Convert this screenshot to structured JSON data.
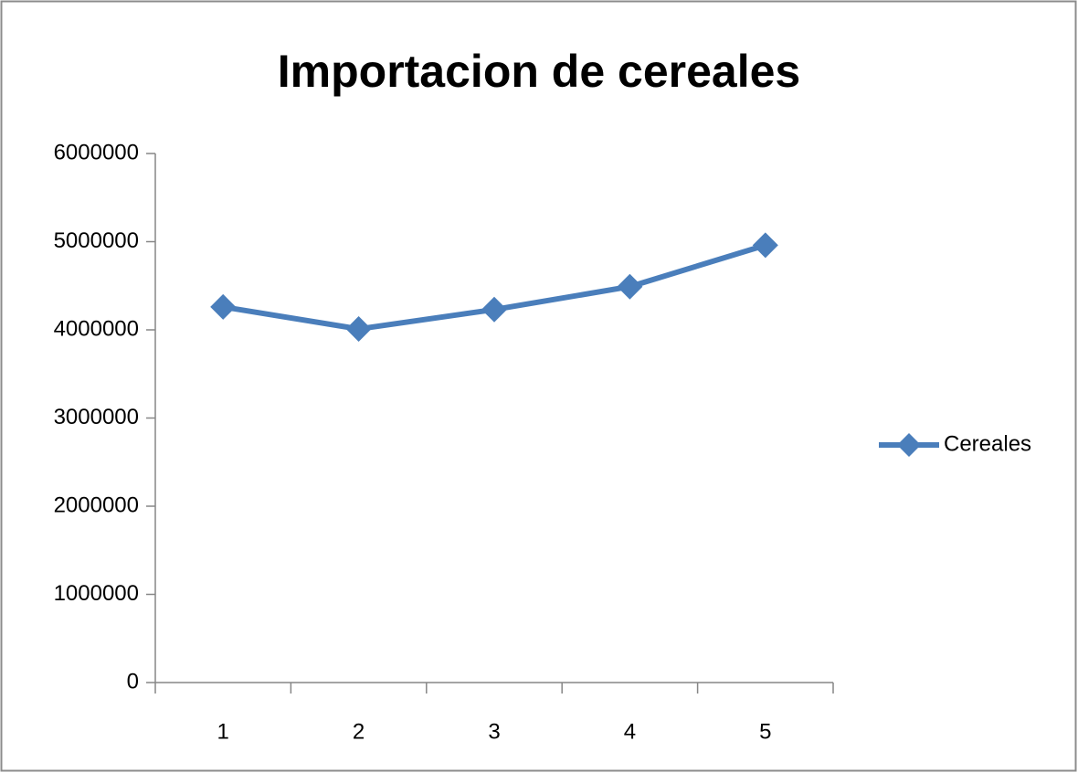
{
  "chart_data": {
    "type": "line",
    "title": "Importacion de cereales",
    "categories": [
      "1",
      "2",
      "3",
      "4",
      "5"
    ],
    "series": [
      {
        "name": "Cereales",
        "color": "#4a7ebb",
        "values": [
          4260000,
          4010000,
          4230000,
          4490000,
          4960000
        ]
      }
    ],
    "ylim": [
      0,
      6000000
    ],
    "yticks": [
      0,
      1000000,
      2000000,
      3000000,
      4000000,
      5000000,
      6000000
    ],
    "grid": false,
    "legend": "right"
  }
}
